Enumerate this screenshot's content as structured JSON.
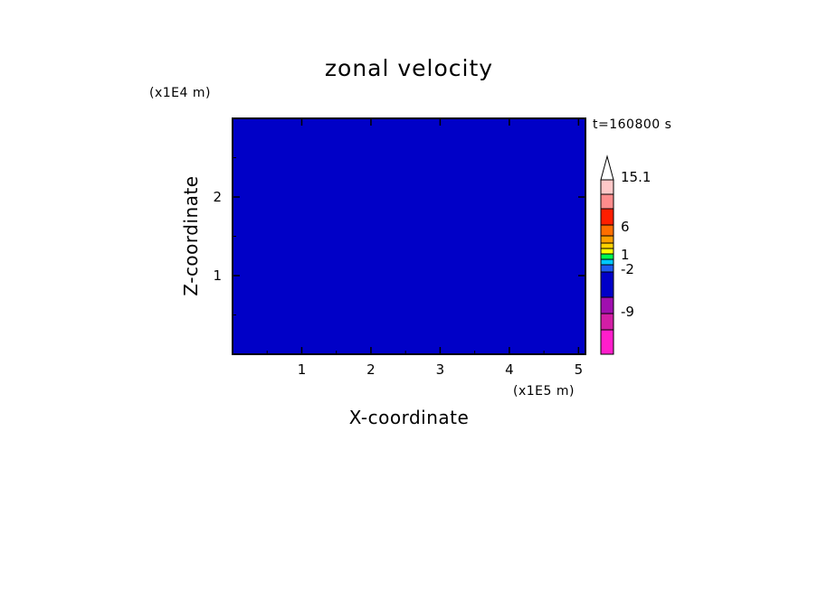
{
  "chart_data": {
    "type": "heatmap",
    "title": "zonal velocity",
    "xlabel": "X-coordinate",
    "ylabel": "Z-coordinate",
    "x_unit": "(x1E5 m)",
    "y_unit": "(x1E4 m)",
    "time_label": "t=160800 s",
    "xlim": [
      0.0,
      5.1
    ],
    "ylim": [
      0.0,
      3.0
    ],
    "x_ticks": [
      "1",
      "2",
      "3",
      "4",
      "5"
    ],
    "y_ticks": [
      "1",
      "2"
    ],
    "colorbar": {
      "tick_labels": [
        "15.1",
        "6",
        "1",
        "-2",
        "-9"
      ],
      "colors": [
        "#ff1ecb",
        "#d21ea5",
        "#a00faf",
        "#0000c8",
        "#1e5af0",
        "#00c8ff",
        "#00ff50",
        "#ffff00",
        "#ffd200",
        "#ffa000",
        "#ff6e00",
        "#ff1e00",
        "#ff8c8c",
        "#ffc8c8"
      ]
    },
    "grid": false
  }
}
